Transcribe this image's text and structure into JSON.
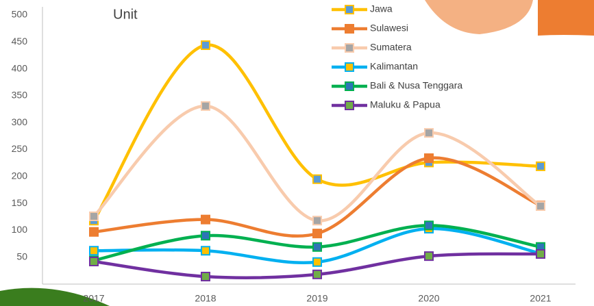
{
  "chart_data": {
    "type": "line",
    "y_label": "Unit",
    "categories": [
      "2017",
      "2018",
      "2019",
      "2020",
      "2021"
    ],
    "series": [
      {
        "name": "Jawa",
        "color": "#FFC000",
        "marker_color": "#5B9BD5",
        "values": [
          118,
          444,
          195,
          226,
          219
        ]
      },
      {
        "name": "Sulawesi",
        "color": "#ED7D31",
        "marker_color": "#ED7D31",
        "values": [
          97,
          120,
          94,
          234,
          146
        ]
      },
      {
        "name": "Sumatera",
        "color": "#F8CBAD",
        "marker_color": "#A5A5A5",
        "values": [
          126,
          331,
          118,
          281,
          145
        ]
      },
      {
        "name": "Kalimantan",
        "color": "#00B0F0",
        "marker_color": "#FFC000",
        "values": [
          62,
          62,
          41,
          103,
          57
        ]
      },
      {
        "name": "Bali & Nusa Tenggara",
        "color": "#00B050",
        "marker_color": "#2E75B6",
        "values": [
          44,
          90,
          69,
          109,
          69
        ]
      },
      {
        "name": "Maluku & Papua",
        "color": "#7030A0",
        "marker_color": "#70AD47",
        "values": [
          42,
          14,
          18,
          52,
          56
        ]
      }
    ],
    "ylim": [
      0,
      500
    ],
    "yticks": [
      50,
      100,
      150,
      200,
      250,
      300,
      350,
      400,
      450,
      500
    ],
    "grid": false,
    "legend": "top-right",
    "smooth": true
  }
}
